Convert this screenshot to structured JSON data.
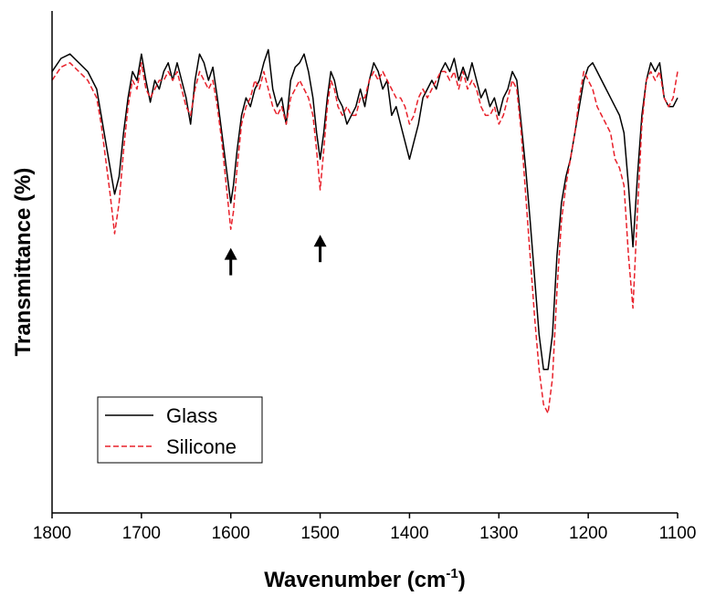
{
  "chart_data": {
    "type": "line",
    "title": "",
    "xlabel": "Wavenumber (cm",
    "xlabel_sup": "-1",
    "xlabel_close": ")",
    "ylabel": "Transmittance (%)",
    "xlim": [
      1800,
      1100
    ],
    "x_reversed": true,
    "ylim": [
      0,
      100
    ],
    "y_tick_labels_shown": false,
    "xticks": [
      "1800",
      "1700",
      "1600",
      "1500",
      "1400",
      "1300",
      "1200",
      "1100"
    ],
    "legend_position": "bottom-left",
    "annotations": [
      {
        "type": "arrow-up",
        "x": 1600,
        "y": 53
      },
      {
        "type": "arrow-up",
        "x": 1500,
        "y": 56
      }
    ],
    "series": [
      {
        "name": "Glass",
        "color": "#000000",
        "style": "solid",
        "points": [
          [
            1800,
            92
          ],
          [
            1790,
            95
          ],
          [
            1780,
            96
          ],
          [
            1770,
            94
          ],
          [
            1760,
            92
          ],
          [
            1750,
            88
          ],
          [
            1745,
            82
          ],
          [
            1740,
            76
          ],
          [
            1735,
            70
          ],
          [
            1730,
            64
          ],
          [
            1725,
            68
          ],
          [
            1720,
            78
          ],
          [
            1715,
            86
          ],
          [
            1710,
            92
          ],
          [
            1705,
            90
          ],
          [
            1700,
            96
          ],
          [
            1695,
            90
          ],
          [
            1690,
            85
          ],
          [
            1685,
            90
          ],
          [
            1680,
            88
          ],
          [
            1675,
            92
          ],
          [
            1670,
            94
          ],
          [
            1665,
            90
          ],
          [
            1660,
            94
          ],
          [
            1655,
            90
          ],
          [
            1650,
            86
          ],
          [
            1645,
            80
          ],
          [
            1640,
            90
          ],
          [
            1635,
            96
          ],
          [
            1630,
            94
          ],
          [
            1625,
            90
          ],
          [
            1620,
            93
          ],
          [
            1615,
            86
          ],
          [
            1610,
            78
          ],
          [
            1605,
            70
          ],
          [
            1600,
            62
          ],
          [
            1597,
            66
          ],
          [
            1593,
            74
          ],
          [
            1588,
            82
          ],
          [
            1583,
            86
          ],
          [
            1578,
            84
          ],
          [
            1573,
            88
          ],
          [
            1568,
            90
          ],
          [
            1563,
            94
          ],
          [
            1558,
            97
          ],
          [
            1553,
            88
          ],
          [
            1548,
            84
          ],
          [
            1543,
            86
          ],
          [
            1538,
            80
          ],
          [
            1533,
            90
          ],
          [
            1528,
            93
          ],
          [
            1523,
            94
          ],
          [
            1518,
            96
          ],
          [
            1513,
            92
          ],
          [
            1508,
            86
          ],
          [
            1504,
            78
          ],
          [
            1500,
            72
          ],
          [
            1496,
            78
          ],
          [
            1492,
            86
          ],
          [
            1488,
            92
          ],
          [
            1484,
            90
          ],
          [
            1480,
            86
          ],
          [
            1475,
            84
          ],
          [
            1470,
            80
          ],
          [
            1465,
            82
          ],
          [
            1460,
            84
          ],
          [
            1455,
            88
          ],
          [
            1450,
            84
          ],
          [
            1445,
            90
          ],
          [
            1440,
            94
          ],
          [
            1435,
            92
          ],
          [
            1430,
            88
          ],
          [
            1425,
            90
          ],
          [
            1420,
            82
          ],
          [
            1415,
            84
          ],
          [
            1410,
            80
          ],
          [
            1405,
            76
          ],
          [
            1400,
            72
          ],
          [
            1395,
            76
          ],
          [
            1390,
            80
          ],
          [
            1385,
            86
          ],
          [
            1380,
            88
          ],
          [
            1375,
            90
          ],
          [
            1370,
            88
          ],
          [
            1365,
            92
          ],
          [
            1360,
            94
          ],
          [
            1355,
            92
          ],
          [
            1350,
            95
          ],
          [
            1345,
            90
          ],
          [
            1340,
            93
          ],
          [
            1335,
            90
          ],
          [
            1330,
            94
          ],
          [
            1325,
            90
          ],
          [
            1320,
            86
          ],
          [
            1315,
            88
          ],
          [
            1310,
            84
          ],
          [
            1305,
            86
          ],
          [
            1300,
            82
          ],
          [
            1295,
            86
          ],
          [
            1290,
            88
          ],
          [
            1285,
            92
          ],
          [
            1280,
            90
          ],
          [
            1275,
            80
          ],
          [
            1270,
            70
          ],
          [
            1265,
            58
          ],
          [
            1260,
            45
          ],
          [
            1255,
            32
          ],
          [
            1250,
            24
          ],
          [
            1245,
            24
          ],
          [
            1240,
            32
          ],
          [
            1235,
            50
          ],
          [
            1230,
            62
          ],
          [
            1225,
            68
          ],
          [
            1220,
            72
          ],
          [
            1215,
            78
          ],
          [
            1210,
            84
          ],
          [
            1205,
            90
          ],
          [
            1200,
            93
          ],
          [
            1195,
            94
          ],
          [
            1190,
            92
          ],
          [
            1185,
            90
          ],
          [
            1180,
            88
          ],
          [
            1175,
            86
          ],
          [
            1170,
            84
          ],
          [
            1165,
            82
          ],
          [
            1160,
            78
          ],
          [
            1155,
            66
          ],
          [
            1150,
            52
          ],
          [
            1145,
            68
          ],
          [
            1140,
            82
          ],
          [
            1135,
            90
          ],
          [
            1130,
            94
          ],
          [
            1125,
            92
          ],
          [
            1120,
            94
          ],
          [
            1115,
            86
          ],
          [
            1110,
            84
          ],
          [
            1105,
            84
          ],
          [
            1100,
            86
          ]
        ]
      },
      {
        "name": "Silicone",
        "color": "#e8202a",
        "style": "dashed",
        "points": [
          [
            1800,
            90
          ],
          [
            1790,
            93
          ],
          [
            1780,
            94
          ],
          [
            1770,
            92
          ],
          [
            1760,
            90
          ],
          [
            1750,
            86
          ],
          [
            1745,
            80
          ],
          [
            1740,
            72
          ],
          [
            1735,
            64
          ],
          [
            1730,
            55
          ],
          [
            1725,
            62
          ],
          [
            1720,
            74
          ],
          [
            1715,
            84
          ],
          [
            1710,
            90
          ],
          [
            1705,
            88
          ],
          [
            1700,
            94
          ],
          [
            1695,
            88
          ],
          [
            1690,
            86
          ],
          [
            1685,
            88
          ],
          [
            1680,
            90
          ],
          [
            1675,
            90
          ],
          [
            1670,
            92
          ],
          [
            1665,
            90
          ],
          [
            1660,
            92
          ],
          [
            1655,
            88
          ],
          [
            1650,
            84
          ],
          [
            1645,
            82
          ],
          [
            1640,
            88
          ],
          [
            1635,
            92
          ],
          [
            1630,
            90
          ],
          [
            1625,
            88
          ],
          [
            1620,
            90
          ],
          [
            1615,
            84
          ],
          [
            1610,
            76
          ],
          [
            1605,
            66
          ],
          [
            1600,
            56
          ],
          [
            1597,
            60
          ],
          [
            1593,
            70
          ],
          [
            1588,
            80
          ],
          [
            1583,
            84
          ],
          [
            1578,
            86
          ],
          [
            1573,
            90
          ],
          [
            1568,
            88
          ],
          [
            1563,
            92
          ],
          [
            1558,
            88
          ],
          [
            1553,
            84
          ],
          [
            1548,
            82
          ],
          [
            1543,
            84
          ],
          [
            1538,
            80
          ],
          [
            1533,
            86
          ],
          [
            1528,
            88
          ],
          [
            1523,
            90
          ],
          [
            1518,
            88
          ],
          [
            1513,
            86
          ],
          [
            1508,
            82
          ],
          [
            1504,
            74
          ],
          [
            1500,
            65
          ],
          [
            1496,
            74
          ],
          [
            1492,
            84
          ],
          [
            1488,
            90
          ],
          [
            1484,
            88
          ],
          [
            1480,
            84
          ],
          [
            1475,
            82
          ],
          [
            1470,
            84
          ],
          [
            1465,
            82
          ],
          [
            1460,
            82
          ],
          [
            1455,
            86
          ],
          [
            1450,
            86
          ],
          [
            1445,
            90
          ],
          [
            1440,
            92
          ],
          [
            1435,
            90
          ],
          [
            1430,
            92
          ],
          [
            1425,
            90
          ],
          [
            1420,
            88
          ],
          [
            1415,
            86
          ],
          [
            1410,
            86
          ],
          [
            1405,
            84
          ],
          [
            1400,
            80
          ],
          [
            1395,
            82
          ],
          [
            1390,
            86
          ],
          [
            1385,
            88
          ],
          [
            1380,
            86
          ],
          [
            1375,
            88
          ],
          [
            1370,
            90
          ],
          [
            1365,
            92
          ],
          [
            1360,
            92
          ],
          [
            1355,
            90
          ],
          [
            1350,
            92
          ],
          [
            1345,
            88
          ],
          [
            1340,
            92
          ],
          [
            1335,
            88
          ],
          [
            1330,
            90
          ],
          [
            1325,
            88
          ],
          [
            1320,
            84
          ],
          [
            1315,
            82
          ],
          [
            1310,
            82
          ],
          [
            1305,
            84
          ],
          [
            1300,
            80
          ],
          [
            1295,
            82
          ],
          [
            1290,
            86
          ],
          [
            1285,
            90
          ],
          [
            1280,
            88
          ],
          [
            1275,
            78
          ],
          [
            1270,
            64
          ],
          [
            1265,
            50
          ],
          [
            1260,
            36
          ],
          [
            1255,
            24
          ],
          [
            1250,
            16
          ],
          [
            1245,
            14
          ],
          [
            1240,
            22
          ],
          [
            1235,
            42
          ],
          [
            1230,
            58
          ],
          [
            1225,
            66
          ],
          [
            1220,
            72
          ],
          [
            1215,
            78
          ],
          [
            1210,
            86
          ],
          [
            1205,
            92
          ],
          [
            1200,
            90
          ],
          [
            1195,
            88
          ],
          [
            1190,
            84
          ],
          [
            1185,
            82
          ],
          [
            1180,
            80
          ],
          [
            1175,
            78
          ],
          [
            1170,
            72
          ],
          [
            1165,
            70
          ],
          [
            1160,
            66
          ],
          [
            1155,
            50
          ],
          [
            1150,
            38
          ],
          [
            1145,
            60
          ],
          [
            1140,
            80
          ],
          [
            1135,
            90
          ],
          [
            1130,
            92
          ],
          [
            1125,
            90
          ],
          [
            1120,
            92
          ],
          [
            1115,
            86
          ],
          [
            1110,
            84
          ],
          [
            1105,
            86
          ],
          [
            1100,
            92
          ]
        ]
      }
    ]
  }
}
